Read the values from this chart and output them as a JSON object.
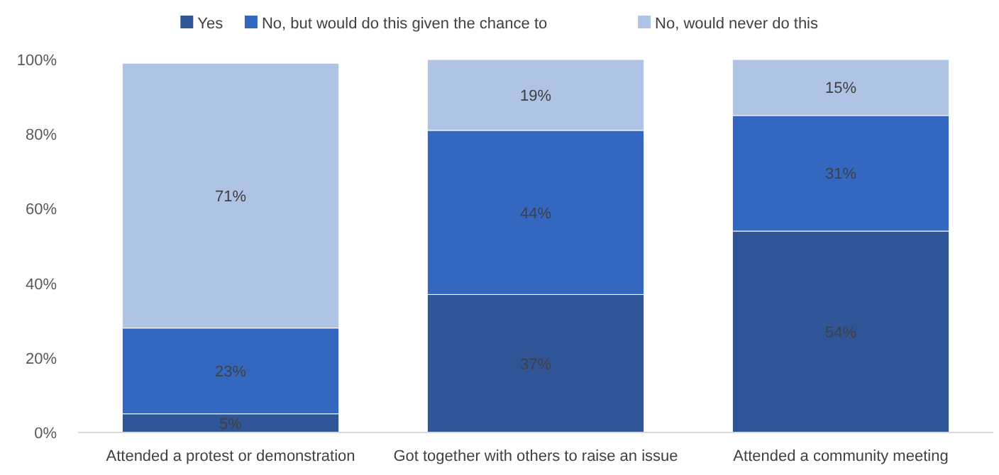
{
  "chart_data": {
    "type": "bar",
    "stacked": true,
    "data_labels": true,
    "grid": false,
    "legend": "top",
    "categories": [
      "Attended a protest or demonstration",
      "Got together with others to raise an issue",
      "Attended a community meeting"
    ],
    "series": [
      {
        "name": "Yes",
        "color": "#2f5597",
        "values": [
          5,
          37,
          54
        ],
        "value_labels": [
          "5%",
          "37%",
          "54%"
        ]
      },
      {
        "name": "No, but would do this given the chance to",
        "color": "#3468c0",
        "values": [
          23,
          44,
          31
        ],
        "value_labels": [
          "23%",
          "44%",
          "31%"
        ]
      },
      {
        "name": "No, would never do this",
        "color": "#afc3e4",
        "values": [
          71,
          19,
          15
        ],
        "value_labels": [
          "71%",
          "19%",
          "15%"
        ]
      }
    ],
    "ylim": [
      0,
      100
    ],
    "yticks": [
      {
        "value": 0,
        "label": "0%"
      },
      {
        "value": 20,
        "label": "20%"
      },
      {
        "value": 40,
        "label": "40%"
      },
      {
        "value": 60,
        "label": "60%"
      },
      {
        "value": 80,
        "label": "80%"
      },
      {
        "value": 100,
        "label": "100%"
      }
    ]
  }
}
